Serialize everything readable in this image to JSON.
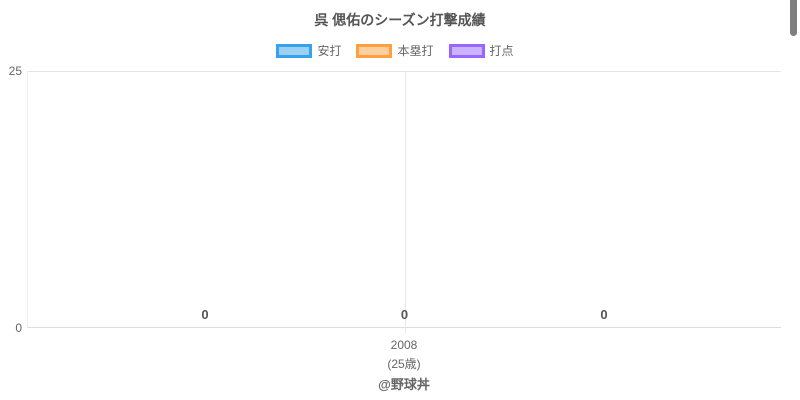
{
  "page": {
    "title": "呉 偲佑のシーズン打撃成績",
    "watermark": "@野球丼",
    "background": "#ffffff"
  },
  "axes": {
    "y_tick_top": "25",
    "y_tick_bottom": "0",
    "x_tick_year": "2008",
    "x_tick_age": "(25歳)"
  },
  "chart_data": {
    "type": "bar",
    "title": "呉 偲佑のシーズン打撃成績",
    "categories": [
      "2008 (25歳)"
    ],
    "series": [
      {
        "name": "安打",
        "values": [
          0
        ],
        "fill": "#9bd1f5",
        "border": "#36a2eb"
      },
      {
        "name": "本塁打",
        "values": [
          0
        ],
        "fill": "#ffcfa0",
        "border": "#ff9f40"
      },
      {
        "name": "打点",
        "values": [
          0
        ],
        "fill": "#ccb3ff",
        "border": "#9966ff"
      }
    ],
    "ylim": [
      0,
      25
    ],
    "y_tick_labels": [
      "0",
      "25"
    ],
    "x_tick_labels": [
      "2008",
      "(25歳)"
    ],
    "value_labels": [
      "0",
      "0",
      "0"
    ],
    "grid": true,
    "legend_position": "top",
    "watermark": "@野球丼",
    "gridline_color": "#e5e5e5",
    "text_color": "#666666",
    "title_color": "#555555"
  }
}
